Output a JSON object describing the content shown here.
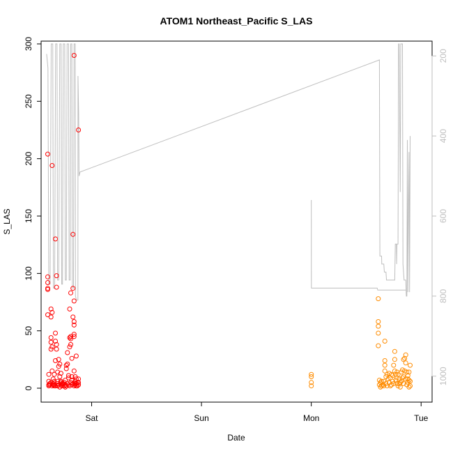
{
  "chart_data": {
    "type": "scatter",
    "title": "ATOM1 Northeast_Pacific S_LAS",
    "xlabel": "Date",
    "ylabel": "S_LAS",
    "ylim": [
      0,
      300
    ],
    "yticks": [
      "0",
      "50",
      "100",
      "150",
      "200",
      "250",
      "300"
    ],
    "xticks": [
      {
        "label": "Sat",
        "day": 1.0
      },
      {
        "label": "Sun",
        "day": 2.0
      },
      {
        "label": "Mon",
        "day": 3.0
      },
      {
        "label": "Tue",
        "day": 4.0
      }
    ],
    "xlim_days": [
      0.54,
      4.1
    ],
    "right_axis": {
      "reversed": true,
      "lim": [
        1030,
        170
      ],
      "ticks": [
        "200",
        "400",
        "600",
        "800",
        "1000"
      ],
      "color": "#bebebe"
    },
    "colors": {
      "series1": "#ff0000",
      "series2": "#ff8c00",
      "profile": "#bebebe"
    },
    "series": [
      {
        "color": "#ff0000",
        "points": [
          [
            0.6,
            204
          ],
          [
            0.6,
            97
          ],
          [
            0.6,
            92
          ],
          [
            0.6,
            87
          ],
          [
            0.6,
            86
          ],
          [
            0.6,
            64
          ],
          [
            0.61,
            12
          ],
          [
            0.61,
            6
          ],
          [
            0.61,
            3
          ],
          [
            0.63,
            69
          ],
          [
            0.63,
            62
          ],
          [
            0.63,
            44
          ],
          [
            0.63,
            40
          ],
          [
            0.63,
            34
          ],
          [
            0.64,
            194
          ],
          [
            0.64,
            66
          ],
          [
            0.64,
            36
          ],
          [
            0.64,
            15
          ],
          [
            0.65,
            8
          ],
          [
            0.65,
            4
          ],
          [
            0.66,
            6
          ],
          [
            0.66,
            3
          ],
          [
            0.67,
            130
          ],
          [
            0.67,
            48
          ],
          [
            0.67,
            41
          ],
          [
            0.67,
            24
          ],
          [
            0.68,
            98
          ],
          [
            0.68,
            88
          ],
          [
            0.68,
            38
          ],
          [
            0.68,
            34
          ],
          [
            0.69,
            6
          ],
          [
            0.69,
            2
          ],
          [
            0.7,
            25
          ],
          [
            0.7,
            19
          ],
          [
            0.71,
            21
          ],
          [
            0.71,
            10
          ],
          [
            0.72,
            6
          ],
          [
            0.72,
            3
          ],
          [
            0.73,
            2
          ],
          [
            0.74,
            4
          ],
          [
            0.75,
            2
          ],
          [
            0.76,
            3
          ],
          [
            0.77,
            20
          ],
          [
            0.77,
            17
          ],
          [
            0.78,
            31
          ],
          [
            0.78,
            21
          ],
          [
            0.79,
            9
          ],
          [
            0.8,
            69
          ],
          [
            0.8,
            44
          ],
          [
            0.8,
            36
          ],
          [
            0.81,
            83
          ],
          [
            0.81,
            45
          ],
          [
            0.81,
            43
          ],
          [
            0.81,
            38
          ],
          [
            0.82,
            26
          ],
          [
            0.82,
            10
          ],
          [
            0.83,
            134
          ],
          [
            0.83,
            87
          ],
          [
            0.83,
            62
          ],
          [
            0.84,
            290
          ],
          [
            0.84,
            76
          ],
          [
            0.84,
            58
          ],
          [
            0.84,
            55
          ],
          [
            0.84,
            47
          ],
          [
            0.84,
            45
          ],
          [
            0.84,
            15
          ],
          [
            0.85,
            10
          ],
          [
            0.85,
            6
          ],
          [
            0.85,
            3
          ],
          [
            0.86,
            28
          ],
          [
            0.86,
            4
          ],
          [
            0.87,
            2
          ],
          [
            0.88,
            225
          ],
          [
            0.88,
            8
          ],
          [
            0.88,
            3
          ],
          [
            0.61,
            2
          ],
          [
            0.62,
            4
          ],
          [
            0.62,
            3
          ],
          [
            0.63,
            5
          ],
          [
            0.64,
            2
          ],
          [
            0.65,
            3
          ],
          [
            0.66,
            2
          ],
          [
            0.67,
            2
          ],
          [
            0.69,
            4
          ],
          [
            0.7,
            3
          ],
          [
            0.71,
            1
          ],
          [
            0.72,
            5
          ],
          [
            0.73,
            4
          ],
          [
            0.74,
            3
          ],
          [
            0.75,
            5
          ],
          [
            0.76,
            1
          ],
          [
            0.77,
            2
          ],
          [
            0.78,
            4
          ],
          [
            0.79,
            3
          ],
          [
            0.8,
            2
          ],
          [
            0.81,
            5
          ],
          [
            0.82,
            3
          ],
          [
            0.83,
            4
          ],
          [
            0.84,
            2
          ],
          [
            0.85,
            4
          ],
          [
            0.86,
            2
          ],
          [
            0.87,
            5
          ],
          [
            0.88,
            5
          ],
          [
            0.66,
            12
          ],
          [
            0.69,
            14
          ],
          [
            0.72,
            13
          ],
          [
            0.76,
            7
          ],
          [
            0.79,
            11
          ],
          [
            0.82,
            7
          ],
          [
            0.86,
            8
          ]
        ]
      },
      {
        "color": "#ff8c00",
        "points": [
          [
            3.0,
            12
          ],
          [
            3.0,
            10
          ],
          [
            3.0,
            5
          ],
          [
            3.0,
            2
          ],
          [
            3.61,
            78
          ],
          [
            3.61,
            58
          ],
          [
            3.61,
            54
          ],
          [
            3.61,
            48
          ],
          [
            3.61,
            37
          ],
          [
            3.62,
            7
          ],
          [
            3.62,
            3
          ],
          [
            3.63,
            1
          ],
          [
            3.63,
            5
          ],
          [
            3.64,
            2
          ],
          [
            3.65,
            3
          ],
          [
            3.66,
            6
          ],
          [
            3.67,
            41
          ],
          [
            3.67,
            24
          ],
          [
            3.67,
            20
          ],
          [
            3.67,
            15
          ],
          [
            3.68,
            10
          ],
          [
            3.68,
            4
          ],
          [
            3.69,
            2
          ],
          [
            3.7,
            8
          ],
          [
            3.71,
            13
          ],
          [
            3.71,
            5
          ],
          [
            3.72,
            9
          ],
          [
            3.73,
            3
          ],
          [
            3.74,
            11
          ],
          [
            3.74,
            6
          ],
          [
            3.75,
            20
          ],
          [
            3.76,
            32
          ],
          [
            3.76,
            25
          ],
          [
            3.76,
            15
          ],
          [
            3.77,
            12
          ],
          [
            3.77,
            7
          ],
          [
            3.78,
            14
          ],
          [
            3.78,
            4
          ],
          [
            3.79,
            2
          ],
          [
            3.8,
            8
          ],
          [
            3.81,
            5
          ],
          [
            3.81,
            1
          ],
          [
            3.82,
            14
          ],
          [
            3.83,
            16
          ],
          [
            3.83,
            9
          ],
          [
            3.84,
            25
          ],
          [
            3.84,
            4
          ],
          [
            3.85,
            26
          ],
          [
            3.85,
            15
          ],
          [
            3.86,
            29
          ],
          [
            3.86,
            22
          ],
          [
            3.86,
            8
          ],
          [
            3.87,
            14
          ],
          [
            3.87,
            3
          ],
          [
            3.88,
            5
          ],
          [
            3.88,
            11
          ],
          [
            3.89,
            14
          ],
          [
            3.89,
            7
          ],
          [
            3.89,
            1
          ],
          [
            3.9,
            20
          ],
          [
            3.9,
            6
          ],
          [
            3.9,
            2
          ],
          [
            3.64,
            6
          ],
          [
            3.66,
            2
          ],
          [
            3.69,
            12
          ],
          [
            3.72,
            2
          ],
          [
            3.73,
            12
          ],
          [
            3.75,
            4
          ],
          [
            3.78,
            9
          ],
          [
            3.79,
            12
          ],
          [
            3.8,
            4
          ],
          [
            3.82,
            6
          ],
          [
            3.84,
            10
          ],
          [
            3.88,
            8
          ]
        ]
      }
    ],
    "profile_line": [
      [
        0.59,
        195
      ],
      [
        0.602,
        230
      ],
      [
        0.61,
        770
      ],
      [
        0.622,
        770
      ],
      [
        0.632,
        170
      ],
      [
        0.646,
        170
      ],
      [
        0.652,
        780
      ],
      [
        0.663,
        780
      ],
      [
        0.672,
        170
      ],
      [
        0.685,
        170
      ],
      [
        0.69,
        760
      ],
      [
        0.7,
        760
      ],
      [
        0.71,
        170
      ],
      [
        0.722,
        170
      ],
      [
        0.727,
        770
      ],
      [
        0.735,
        770
      ],
      [
        0.742,
        170
      ],
      [
        0.755,
        170
      ],
      [
        0.76,
        760
      ],
      [
        0.77,
        760
      ],
      [
        0.777,
        170
      ],
      [
        0.79,
        170
      ],
      [
        0.795,
        760
      ],
      [
        0.805,
        760
      ],
      [
        0.81,
        170
      ],
      [
        0.82,
        170
      ],
      [
        0.825,
        780
      ],
      [
        0.835,
        780
      ],
      [
        0.84,
        170
      ],
      [
        0.85,
        170
      ],
      [
        0.853,
        800
      ],
      [
        0.862,
        810
      ],
      [
        0.875,
        810
      ],
      [
        0.876,
        250
      ],
      [
        0.882,
        345
      ],
      [
        0.885,
        500
      ],
      [
        0.895,
        490
      ],
      [
        3.62,
        210
      ],
      [
        3.625,
        700
      ],
      [
        3.64,
        700
      ],
      [
        3.642,
        720
      ],
      [
        3.66,
        720
      ],
      [
        3.665,
        740
      ],
      [
        3.68,
        740
      ],
      [
        3.685,
        760
      ],
      [
        3.76,
        760
      ],
      [
        3.765,
        670
      ],
      [
        3.775,
        670
      ],
      [
        3.777,
        720
      ],
      [
        3.78,
        670
      ],
      [
        3.79,
        670
      ],
      [
        3.795,
        170
      ],
      [
        3.8,
        170
      ],
      [
        3.81,
        540
      ],
      [
        3.815,
        170
      ],
      [
        3.83,
        170
      ],
      [
        3.835,
        720
      ],
      [
        3.845,
        760
      ],
      [
        3.86,
        760
      ],
      [
        3.865,
        800
      ],
      [
        3.87,
        800
      ],
      [
        3.875,
        410
      ],
      [
        3.88,
        790
      ],
      [
        3.885,
        570
      ],
      [
        3.89,
        440
      ],
      [
        3.895,
        790
      ],
      [
        3.9,
        400
      ],
      [
        3.0,
        560
      ],
      [
        3.001,
        780
      ],
      [
        3.6,
        780
      ],
      [
        3.605,
        785
      ],
      [
        3.86,
        785
      ]
    ]
  }
}
